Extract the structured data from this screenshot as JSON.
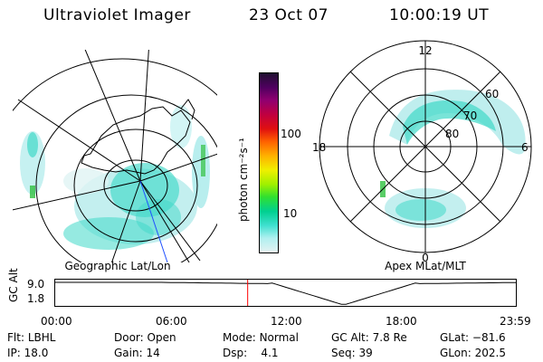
{
  "header": {
    "title": "Ultraviolet Imager",
    "date": "23 Oct 07",
    "time": "10:00:19 UT"
  },
  "colorbar": {
    "unit_label": "photon cm⁻²s⁻¹",
    "ticks": [
      "100",
      "10"
    ],
    "colors": [
      "#201030",
      "#500060",
      "#900070",
      "#c00040",
      "#e01010",
      "#ff6000",
      "#ffb000",
      "#f0f000",
      "#a0f000",
      "#30e030",
      "#00d090",
      "#40e0d0",
      "#b0f0f0",
      "#e6f2f2"
    ]
  },
  "left_panel": {
    "label": "Geographic Lat/Lon"
  },
  "right_panel": {
    "label": "Apex MLat/MLT",
    "mlt_labels": {
      "top": "12",
      "bottom": "0",
      "left": "18",
      "right": "6"
    },
    "lat_labels": [
      "80",
      "70",
      "60"
    ]
  },
  "alt_plot": {
    "ylabel": "GC Alt",
    "yticks": [
      "9.0",
      "1.8"
    ],
    "xticks": [
      "00:00",
      "06:00",
      "12:00",
      "18:00",
      "23:59"
    ],
    "marker_time_fraction": 0.417,
    "marker_color": "#ff0000"
  },
  "info": {
    "row1": [
      {
        "key": "Flt:",
        "value": "LBHL"
      },
      {
        "key": "Door:",
        "value": "Open"
      },
      {
        "key": "Mode:",
        "value": "Normal"
      },
      {
        "key": "GC Alt:",
        "value": "7.8 Re"
      },
      {
        "key": "GLat:",
        "value": "−81.6"
      }
    ],
    "row2": [
      {
        "key": "IP:",
        "value": "18.0"
      },
      {
        "key": "Gain:",
        "value": "14"
      },
      {
        "key": "Dsp:",
        "value": "   4.1"
      },
      {
        "key": "Seq:",
        "value": "39"
      },
      {
        "key": "GLon:",
        "value": "202.5"
      }
    ]
  }
}
